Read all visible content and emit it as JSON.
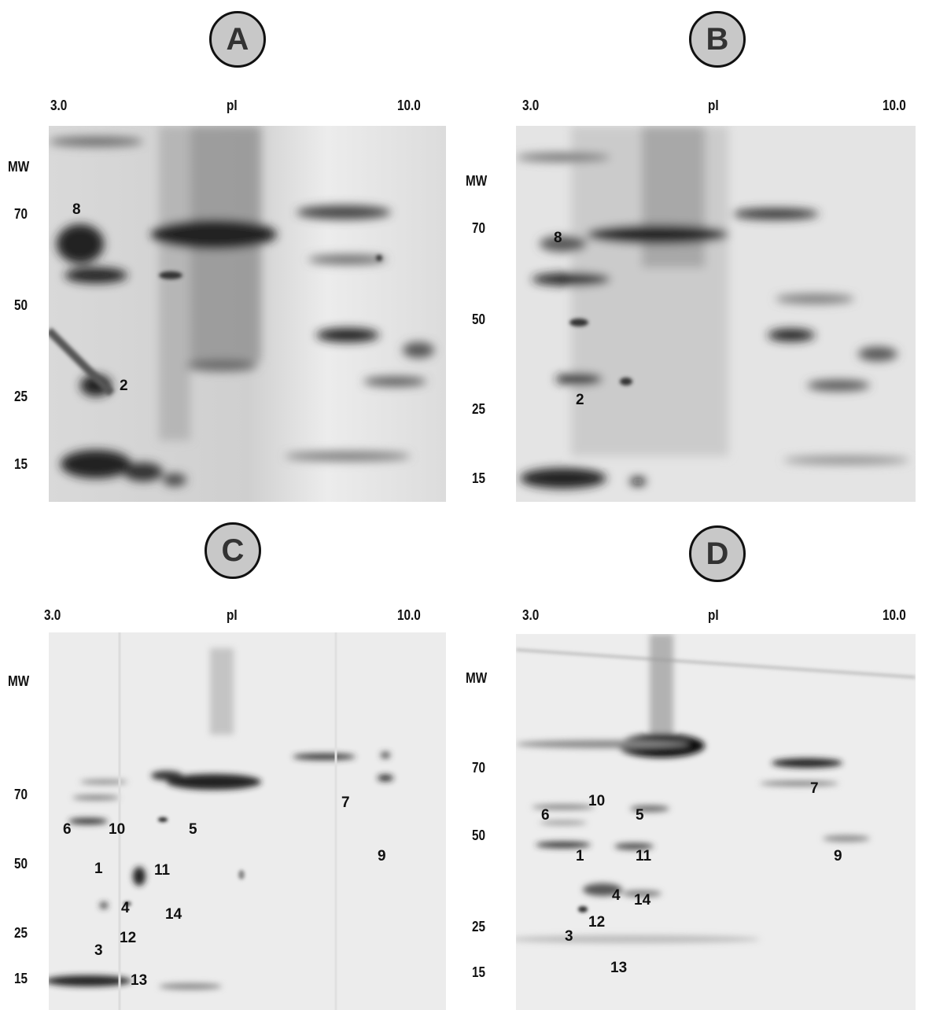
{
  "panels": [
    {
      "id": "A",
      "label": "A",
      "axis": {
        "ph_low": "3.0",
        "ph_label": "pI",
        "ph_high": "10.0",
        "mw_label": "MW",
        "mw_ticks": [
          "70",
          "50",
          "25",
          "15"
        ]
      },
      "spot_labels": [
        "8",
        "2"
      ],
      "style": "dark"
    },
    {
      "id": "B",
      "label": "B",
      "axis": {
        "ph_low": "3.0",
        "ph_label": "pI",
        "ph_high": "10.0",
        "mw_label": "MW",
        "mw_ticks": [
          "70",
          "50",
          "25",
          "15"
        ]
      },
      "spot_labels": [
        "8",
        "2"
      ],
      "style": "dark"
    },
    {
      "id": "C",
      "label": "C",
      "axis": {
        "ph_low": "3.0",
        "ph_label": "pI",
        "ph_high": "10.0",
        "mw_label": "MW",
        "mw_ticks": [
          "70",
          "50",
          "25",
          "15"
        ]
      },
      "spot_labels": [
        "6",
        "10",
        "5",
        "7",
        "1",
        "11",
        "9",
        "4",
        "14",
        "12",
        "3",
        "13"
      ],
      "style": "light"
    },
    {
      "id": "D",
      "label": "D",
      "axis": {
        "ph_low": "3.0",
        "ph_label": "pI",
        "ph_high": "10.0",
        "mw_label": "MW",
        "mw_ticks": [
          "70",
          "50",
          "25",
          "15"
        ]
      },
      "spot_labels": [
        "10",
        "5",
        "7",
        "6",
        "1",
        "11",
        "9",
        "4",
        "14",
        "12",
        "3",
        "13"
      ],
      "style": "light"
    }
  ]
}
